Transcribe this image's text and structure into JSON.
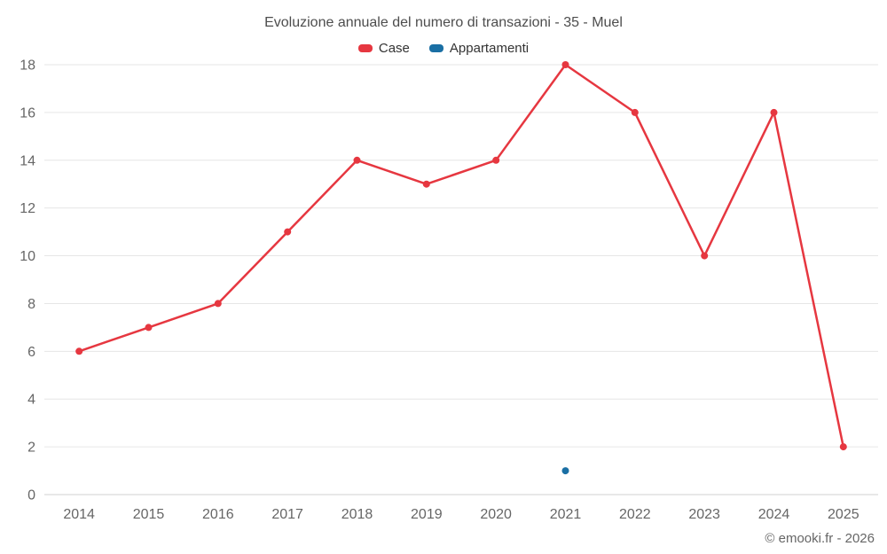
{
  "chart_data": {
    "type": "line",
    "title": "Evoluzione annuale del numero di transazioni - 35 - Muel",
    "categories": [
      "2014",
      "2015",
      "2016",
      "2017",
      "2018",
      "2019",
      "2020",
      "2021",
      "2022",
      "2023",
      "2024",
      "2025"
    ],
    "series": [
      {
        "name": "Case",
        "color": "#e63740",
        "values": [
          6,
          7,
          8,
          11,
          14,
          13,
          14,
          18,
          16,
          10,
          16,
          2
        ]
      },
      {
        "name": "Appartamenti",
        "color": "#1a6fa4",
        "values": [
          null,
          null,
          null,
          null,
          null,
          null,
          null,
          1,
          null,
          null,
          null,
          null
        ]
      }
    ],
    "ylim": [
      0,
      18
    ],
    "ytick_step": 2,
    "grid": true,
    "legend_position": "top",
    "grid_color": "#e6e6e6",
    "axis_line_color": "#d0d0d0",
    "tick_label_color": "#666666"
  },
  "footer": {
    "credit": "© emooki.fr - 2026"
  }
}
